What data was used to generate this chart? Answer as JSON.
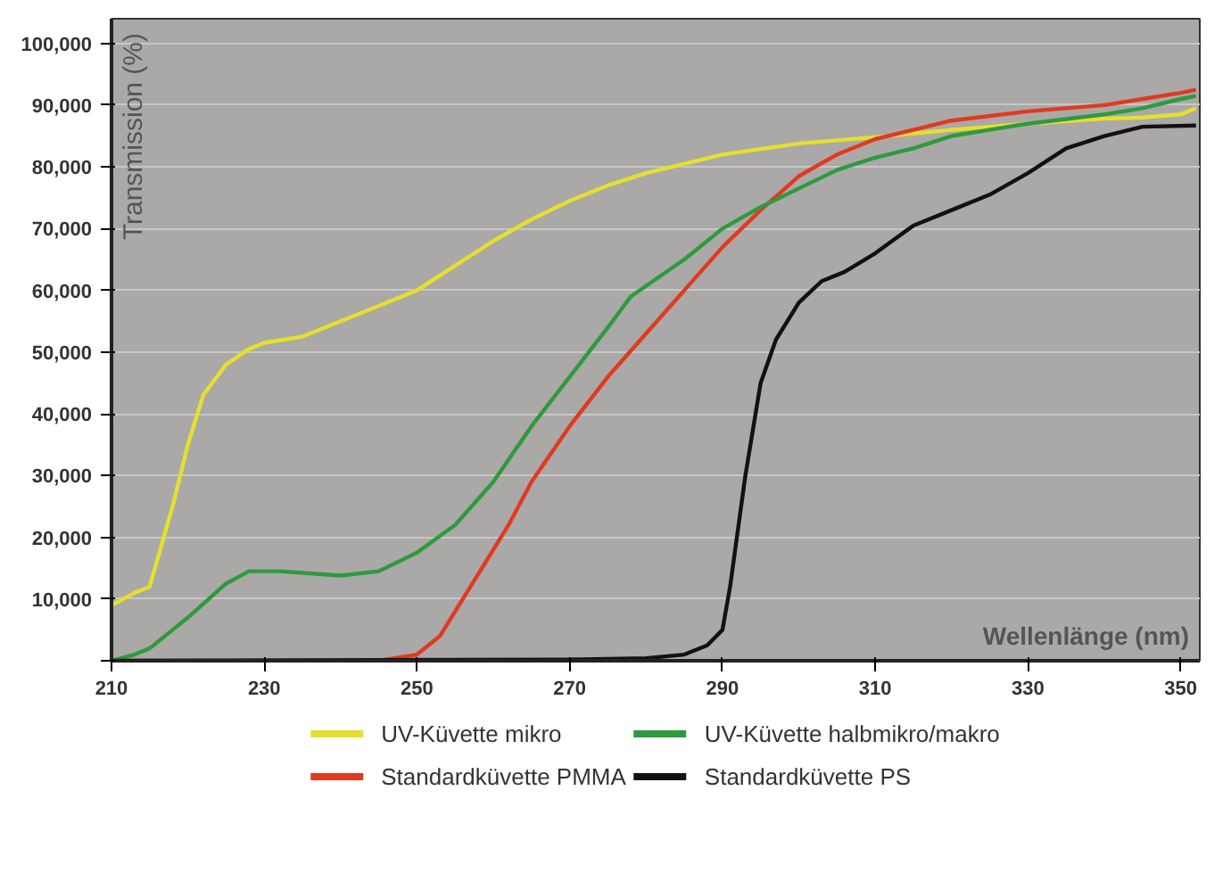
{
  "chart_data": {
    "type": "line",
    "xlabel": "Wellenlänge (nm)",
    "ylabel": "Transmission (%)",
    "xlim": [
      210,
      352.5
    ],
    "ylim": [
      0,
      104000
    ],
    "xticks": [
      210,
      230,
      250,
      270,
      290,
      310,
      330,
      350
    ],
    "yticks": [
      {
        "value": 0,
        "label": null
      },
      {
        "value": 10000,
        "label": "10,000"
      },
      {
        "value": 20000,
        "label": "20,000"
      },
      {
        "value": 30000,
        "label": "30,000"
      },
      {
        "value": 40000,
        "label": "40,000"
      },
      {
        "value": 50000,
        "label": "50,000"
      },
      {
        "value": 60000,
        "label": "60,000"
      },
      {
        "value": 70000,
        "label": "70,000"
      },
      {
        "value": 80000,
        "label": "80,000"
      },
      {
        "value": 90000,
        "label": "90,000"
      },
      {
        "value": 100000,
        "label": "100,000"
      }
    ],
    "grid": "y",
    "legend": "bottom",
    "line_style": "solid",
    "series": [
      {
        "name": "UV-Küvette mikro",
        "color": "#e6df2e",
        "x": [
          210,
          213,
          215,
          218,
          220,
          222,
          225,
          228,
          230,
          235,
          240,
          245,
          250,
          255,
          260,
          265,
          270,
          275,
          280,
          285,
          290,
          300,
          310,
          320,
          330,
          340,
          345,
          350,
          352
        ],
        "values": [
          9000,
          11000,
          12000,
          25000,
          35000,
          43000,
          48000,
          50500,
          51500,
          52500,
          55000,
          57500,
          60000,
          64000,
          68000,
          71500,
          74500,
          77000,
          79000,
          80500,
          82000,
          83800,
          84800,
          86000,
          87000,
          87800,
          88000,
          88500,
          89500
        ]
      },
      {
        "name": "Standardküvette PMMA",
        "color": "#e03a20",
        "x": [
          210,
          245,
          250,
          253,
          258,
          262,
          265,
          270,
          275,
          280,
          285,
          290,
          295,
          300,
          305,
          310,
          315,
          320,
          330,
          340,
          345,
          350,
          352
        ],
        "values": [
          0,
          0,
          1000,
          4000,
          14000,
          22000,
          29000,
          38000,
          46000,
          53000,
          60000,
          67000,
          73000,
          78500,
          82000,
          84500,
          86000,
          87500,
          89000,
          90000,
          91000,
          92000,
          92500
        ]
      },
      {
        "name": "UV-Küvette halbmikro/makro",
        "color": "#2e9a3e",
        "x": [
          210,
          213,
          215,
          220,
          225,
          228,
          232,
          240,
          245,
          250,
          255,
          260,
          265,
          270,
          275,
          278,
          285,
          290,
          295,
          300,
          305,
          310,
          315,
          320,
          330,
          340,
          345,
          350,
          352
        ],
        "values": [
          0,
          1000,
          2000,
          7000,
          12500,
          14500,
          14500,
          13800,
          14500,
          17500,
          22000,
          29000,
          38000,
          46000,
          54000,
          59000,
          65000,
          70000,
          73500,
          76500,
          79500,
          81500,
          83000,
          85000,
          87000,
          88500,
          89500,
          91000,
          91500
        ]
      },
      {
        "name": "Standardküvette PS",
        "color": "#111111",
        "x": [
          210,
          270,
          280,
          285,
          288,
          290,
          291,
          293,
          295,
          297,
          300,
          303,
          306,
          310,
          315,
          320,
          325,
          330,
          335,
          340,
          345,
          352
        ],
        "values": [
          0,
          200,
          400,
          1000,
          2500,
          5000,
          12000,
          30000,
          45000,
          52000,
          58000,
          61500,
          63000,
          66000,
          70500,
          73000,
          75500,
          79000,
          83000,
          85000,
          86500,
          86700
        ]
      }
    ]
  }
}
